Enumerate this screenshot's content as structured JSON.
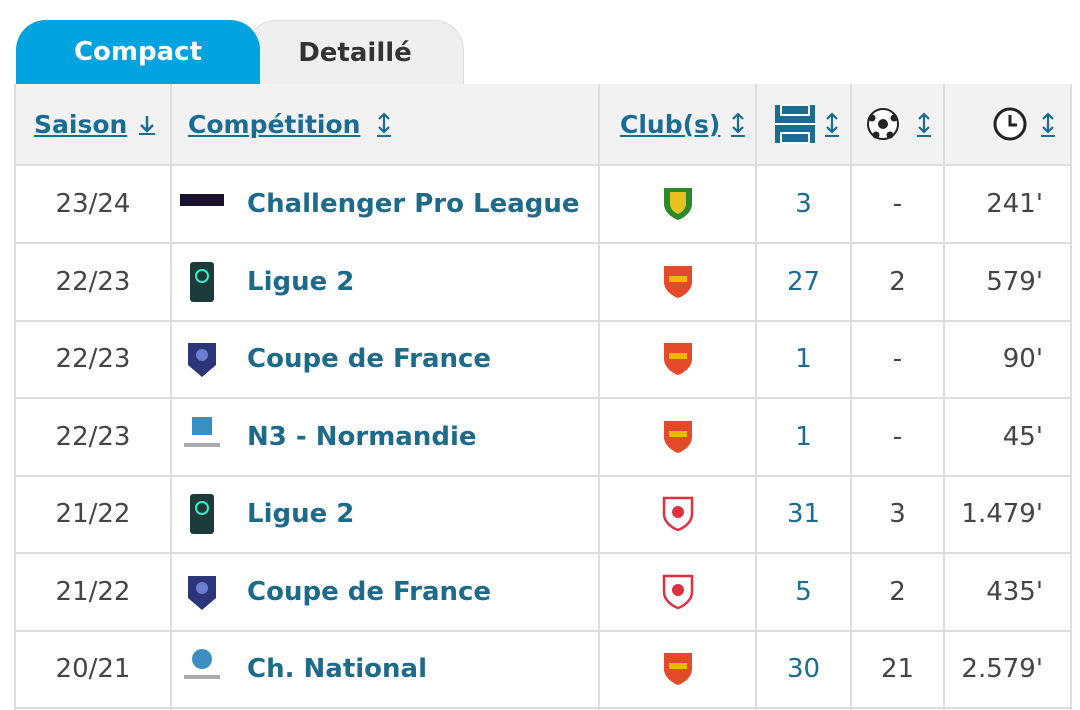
{
  "tabs": [
    "Compact",
    "Detaillé"
  ],
  "table": {
    "headers": [
      "Saison",
      "Compétition",
      "Club(s)"
    ],
    "rows": [
      [
        "23/24",
        "Challenger Pro League",
        "3",
        "-",
        "241'"
      ],
      [
        "22/23",
        "Ligue 2",
        "27",
        "2",
        "579'"
      ],
      [
        "22/23",
        "Coupe de France",
        "1",
        "-",
        "90'"
      ],
      [
        "22/23",
        "N3 - Normandie",
        "1",
        "-",
        "45'"
      ],
      [
        "21/22",
        "Ligue 2",
        "31",
        "3",
        "1.479'"
      ],
      [
        "21/22",
        "Coupe de France",
        "5",
        "2",
        "435'"
      ],
      [
        "20/21",
        "Ch. National",
        "30",
        "21",
        "2.579'"
      ]
    ]
  }
}
